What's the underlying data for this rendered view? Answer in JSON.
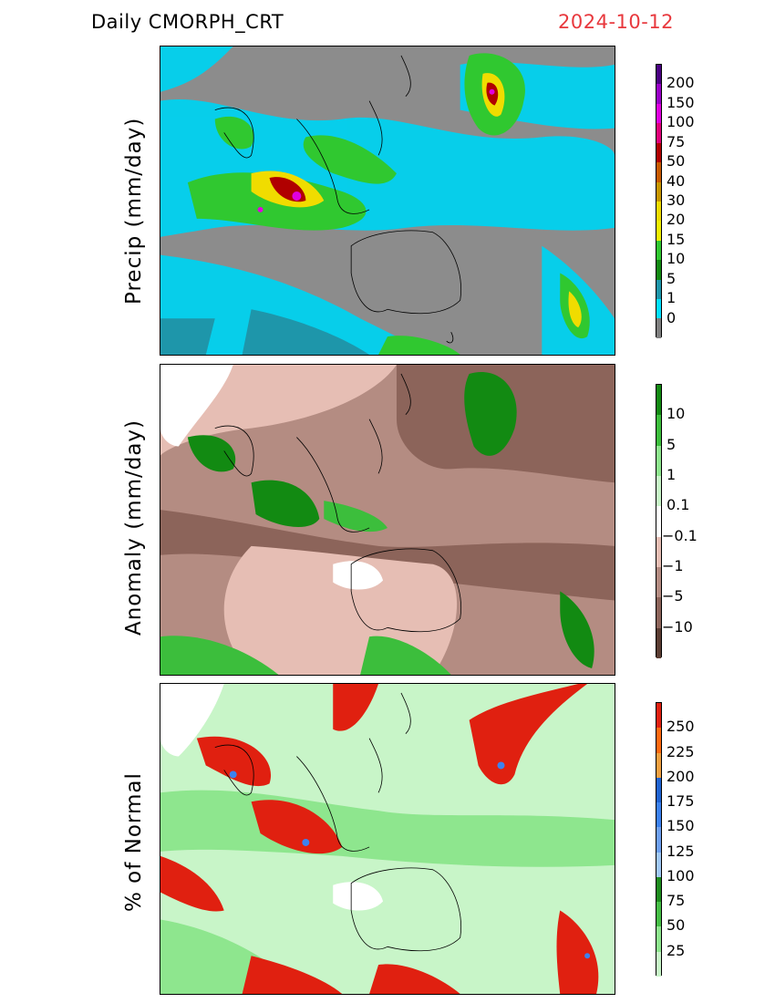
{
  "title": "Daily  CMORPH_CRT",
  "date": "2024-10-12",
  "panels": [
    {
      "ylabel": "Precip  (mm/day)",
      "colorbar": {
        "labels": [
          "200",
          "150",
          "100",
          "75",
          "50",
          "40",
          "30",
          "20",
          "15",
          "10",
          "5",
          "1",
          "0"
        ],
        "colors": [
          "#4b0082",
          "#9a00c8",
          "#e000e0",
          "#e0007a",
          "#b00000",
          "#c85a00",
          "#c89600",
          "#f0dc00",
          "#f0f000",
          "#30c830",
          "#128a12",
          "#1e96aa",
          "#00e0ff",
          "#7f7f7f"
        ]
      }
    },
    {
      "ylabel": "Anomaly  (mm/day)",
      "colorbar": {
        "labels": [
          "10",
          "5",
          "1",
          "0.1",
          "−0.1",
          "−1",
          "−5",
          "−10"
        ],
        "colors": [
          "#128a12",
          "#3cbe3c",
          "#8ee68e",
          "#c8f5c8",
          "#ffffff",
          "#e6beb4",
          "#b48c82",
          "#8c645a",
          "#5a3c32"
        ]
      }
    },
    {
      "ylabel": "% of  Normal",
      "colorbar": {
        "labels": [
          "250",
          "225",
          "200",
          "175",
          "150",
          "125",
          "100",
          "75",
          "50",
          "25"
        ],
        "colors": [
          "#e02010",
          "#ff6a10",
          "#f0a040",
          "#2064d2",
          "#3c82f0",
          "#6ea0f0",
          "#a0c8f5",
          "#1e8c1e",
          "#46be46",
          "#8ee68e",
          "#c8f5c8"
        ]
      }
    }
  ]
}
